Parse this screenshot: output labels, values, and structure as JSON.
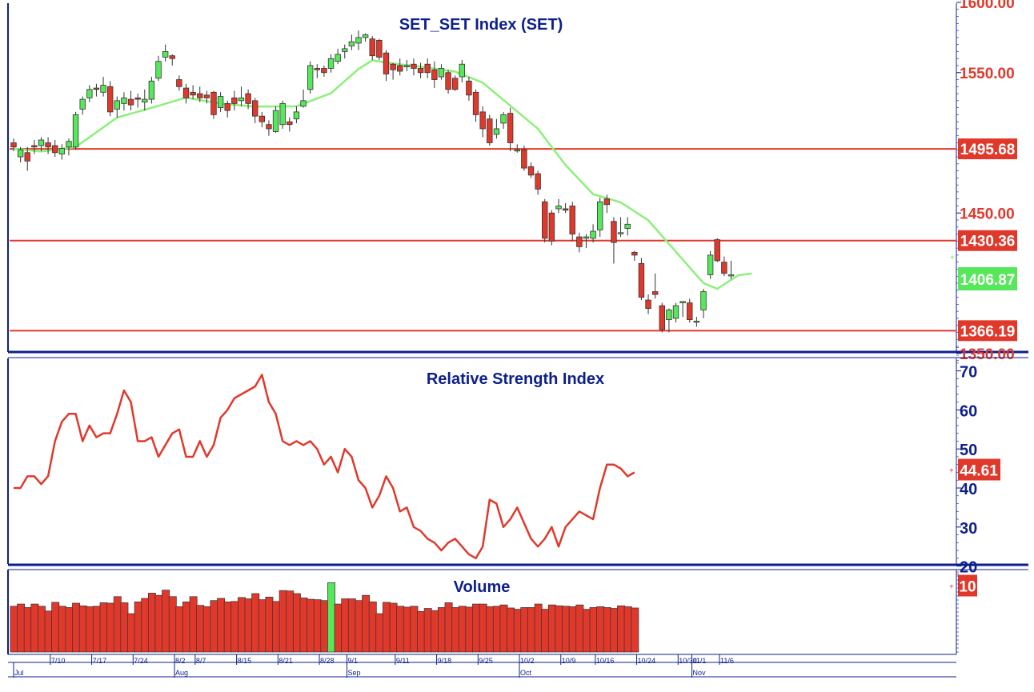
{
  "colors": {
    "up": "#56e85a",
    "down": "#e0392b",
    "ma": "#8cf07a",
    "rsi_line": "#e0392b",
    "axis": "#0d1f8c",
    "hline": "#e0392b"
  },
  "chart_data": [
    {
      "type": "candlestick",
      "title": "SET_SET Index (SET)",
      "ylim": [
        1335,
        1625
      ],
      "y_ticks": [
        "1600.00",
        "1550.00",
        "1450.00",
        "1350.00"
      ],
      "horizontal_lines": [
        1495.68,
        1430.36,
        1366.19
      ],
      "level_labels": [
        "1495.68",
        "1430.36",
        "1366.19"
      ],
      "last_price_label": "1406.87",
      "grid": false,
      "candles": [
        [
          1500,
          1497,
          1503,
          1494
        ],
        [
          1490,
          1495,
          1497,
          1486
        ],
        [
          1493,
          1487,
          1497,
          1480
        ],
        [
          1498,
          1497,
          1502,
          1492
        ],
        [
          1498,
          1502,
          1504,
          1494
        ],
        [
          1500,
          1497,
          1504,
          1492
        ],
        [
          1498,
          1493,
          1502,
          1490
        ],
        [
          1492,
          1496,
          1499,
          1488
        ],
        [
          1497,
          1501,
          1503,
          1491
        ],
        [
          1497,
          1520,
          1522,
          1495
        ],
        [
          1524,
          1531,
          1533,
          1520
        ],
        [
          1532,
          1538,
          1541,
          1529
        ],
        [
          1539,
          1538,
          1542,
          1533
        ],
        [
          1536,
          1541,
          1547,
          1533
        ],
        [
          1540,
          1522,
          1544,
          1519
        ],
        [
          1524,
          1530,
          1533,
          1518
        ],
        [
          1528,
          1532,
          1536,
          1523
        ],
        [
          1531,
          1527,
          1537,
          1523
        ],
        [
          1532,
          1531,
          1535,
          1525
        ],
        [
          1529,
          1531,
          1538,
          1523
        ],
        [
          1531,
          1544,
          1547,
          1528
        ],
        [
          1546,
          1558,
          1562,
          1544
        ],
        [
          1561,
          1565,
          1570,
          1558
        ],
        [
          1562,
          1560,
          1563,
          1555
        ],
        [
          1545,
          1540,
          1548,
          1537
        ],
        [
          1539,
          1532,
          1542,
          1528
        ],
        [
          1536,
          1534,
          1541,
          1531
        ],
        [
          1535,
          1532,
          1540,
          1529
        ],
        [
          1534,
          1532,
          1537,
          1528
        ],
        [
          1536,
          1520,
          1537,
          1517
        ],
        [
          1525,
          1533,
          1536,
          1522
        ],
        [
          1528,
          1523,
          1530,
          1518
        ],
        [
          1532,
          1528,
          1537,
          1523
        ],
        [
          1530,
          1532,
          1540,
          1526
        ],
        [
          1535,
          1528,
          1538,
          1524
        ],
        [
          1530,
          1519,
          1532,
          1514
        ],
        [
          1519,
          1515,
          1522,
          1511
        ],
        [
          1513,
          1510,
          1516,
          1505
        ],
        [
          1508,
          1523,
          1526,
          1507
        ],
        [
          1513,
          1528,
          1530,
          1510
        ],
        [
          1515,
          1513,
          1518,
          1508
        ],
        [
          1517,
          1522,
          1526,
          1514
        ],
        [
          1526,
          1530,
          1538,
          1525
        ],
        [
          1538,
          1555,
          1558,
          1535
        ],
        [
          1553,
          1552,
          1556,
          1546
        ],
        [
          1553,
          1550,
          1555,
          1547
        ],
        [
          1553,
          1560,
          1563,
          1550
        ],
        [
          1558,
          1563,
          1567,
          1556
        ],
        [
          1565,
          1567,
          1570,
          1560
        ],
        [
          1569,
          1572,
          1577,
          1566
        ],
        [
          1571,
          1575,
          1580,
          1566
        ],
        [
          1575,
          1577,
          1578,
          1572
        ],
        [
          1574,
          1562,
          1576,
          1559
        ],
        [
          1573,
          1561,
          1574,
          1559
        ],
        [
          1564,
          1549,
          1566,
          1544
        ],
        [
          1556,
          1552,
          1557,
          1545
        ],
        [
          1555,
          1551,
          1560,
          1548
        ],
        [
          1555,
          1555,
          1559,
          1551
        ],
        [
          1556,
          1553,
          1560,
          1548
        ],
        [
          1553,
          1550,
          1557,
          1546
        ],
        [
          1556,
          1550,
          1560,
          1546
        ],
        [
          1552,
          1545,
          1558,
          1539
        ],
        [
          1547,
          1553,
          1556,
          1545
        ],
        [
          1550,
          1538,
          1552,
          1535
        ],
        [
          1546,
          1538,
          1548,
          1537
        ],
        [
          1547,
          1556,
          1559,
          1543
        ],
        [
          1544,
          1534,
          1547,
          1530
        ],
        [
          1536,
          1520,
          1538,
          1515
        ],
        [
          1522,
          1510,
          1526,
          1504
        ],
        [
          1517,
          1500,
          1520,
          1498
        ],
        [
          1506,
          1510,
          1517,
          1503
        ],
        [
          1514,
          1520,
          1522,
          1510
        ],
        [
          1521,
          1500,
          1525,
          1494
        ],
        [
          1495,
          1495,
          1499,
          1493
        ],
        [
          1495,
          1482,
          1498,
          1480
        ],
        [
          1483,
          1477,
          1486,
          1475
        ],
        [
          1478,
          1467,
          1480,
          1463
        ],
        [
          1458,
          1432,
          1460,
          1429
        ],
        [
          1450,
          1430,
          1452,
          1427
        ],
        [
          1453,
          1455,
          1460,
          1450
        ],
        [
          1453,
          1452,
          1457,
          1450
        ],
        [
          1455,
          1435,
          1458,
          1430
        ],
        [
          1433,
          1426,
          1436,
          1422
        ],
        [
          1432,
          1433,
          1435,
          1425
        ],
        [
          1432,
          1437,
          1442,
          1429
        ],
        [
          1438,
          1458,
          1461,
          1433
        ],
        [
          1460,
          1456,
          1463,
          1450
        ],
        [
          1444,
          1429,
          1447,
          1414
        ],
        [
          1436,
          1436,
          1447,
          1433
        ],
        [
          1439,
          1442,
          1447,
          1434
        ],
        [
          1422,
          1420,
          1423,
          1416
        ],
        [
          1414,
          1390,
          1418,
          1388
        ],
        [
          1388,
          1382,
          1392,
          1378
        ],
        [
          1394,
          1392,
          1407,
          1389
        ],
        [
          1384,
          1367,
          1386,
          1365
        ],
        [
          1374,
          1381,
          1382,
          1365
        ],
        [
          1375,
          1384,
          1386,
          1372
        ],
        [
          1386,
          1387,
          1387,
          1376
        ],
        [
          1386,
          1374,
          1389,
          1372
        ],
        [
          1373,
          1373,
          1376,
          1369
        ],
        [
          1381,
          1394,
          1396,
          1375
        ],
        [
          1406,
          1420,
          1423,
          1403
        ],
        [
          1431,
          1416,
          1432,
          1415
        ],
        [
          1415,
          1407,
          1419,
          1405
        ],
        [
          1406,
          1406,
          1416,
          1403
        ]
      ],
      "moving_average": [
        [
          0,
          1495.8
        ],
        [
          4,
          1493.8
        ],
        [
          9,
          1497.0
        ],
        [
          15,
          1518.0
        ],
        [
          20,
          1524.9
        ],
        [
          25,
          1532.2
        ],
        [
          30,
          1527.9
        ],
        [
          35,
          1525.8
        ],
        [
          41,
          1526.0
        ],
        [
          46,
          1535.3
        ],
        [
          50,
          1552.6
        ],
        [
          52,
          1558.7
        ],
        [
          55,
          1556.4
        ],
        [
          60,
          1553.6
        ],
        [
          64,
          1550.7
        ],
        [
          68,
          1542.8
        ],
        [
          72,
          1526.4
        ],
        [
          76,
          1510.0
        ],
        [
          80,
          1484.2
        ],
        [
          84,
          1463.4
        ],
        [
          88,
          1457.6
        ],
        [
          92,
          1444.8
        ],
        [
          96,
          1422.4
        ],
        [
          100,
          1400.0
        ],
        [
          102,
          1396.0
        ],
        [
          105,
          1405.6
        ],
        [
          107,
          1406.9
        ]
      ]
    },
    {
      "type": "line",
      "title": "Relative Strength Index",
      "ylim": [
        15,
        77
      ],
      "y_ticks": [
        "70",
        "60",
        "50",
        "40",
        "30",
        "20"
      ],
      "last_value_label": "44.61",
      "grid": false,
      "values": [
        40,
        40,
        43,
        43,
        41,
        43,
        52,
        57,
        59,
        59,
        52,
        56,
        53,
        54,
        54,
        59,
        65,
        62,
        52,
        52,
        53,
        48,
        51,
        54,
        55,
        48,
        48,
        52,
        48,
        51,
        58,
        60,
        63,
        64,
        65,
        66,
        69,
        62,
        59,
        52,
        51,
        52,
        51,
        52,
        50,
        46,
        48,
        44,
        50,
        48,
        42,
        40,
        35,
        38,
        43,
        40,
        34,
        35,
        30,
        29,
        27,
        26,
        24,
        26,
        27,
        25,
        23,
        22,
        25,
        37,
        36,
        30,
        32,
        35,
        31,
        27,
        25,
        27,
        30,
        25,
        30,
        32,
        34,
        33,
        32,
        40,
        46,
        46,
        45,
        43,
        44
      ],
      "x_start_index": 0
    },
    {
      "type": "bar",
      "title": "Volume",
      "y_ticks": [
        "10"
      ],
      "ylim": [
        0,
        18
      ],
      "grid": false,
      "values": [
        10.5,
        11,
        10.2,
        11,
        10.5,
        9.4,
        11.4,
        10.5,
        10.2,
        11.2,
        10.6,
        10.4,
        10.5,
        11.3,
        11.2,
        12.7,
        11.3,
        8.8,
        11.5,
        12.3,
        13.5,
        13.0,
        14.2,
        12.7,
        10.4,
        11.5,
        12.7,
        10.7,
        10.4,
        11.8,
        12.3,
        11.5,
        11.6,
        12.5,
        12.2,
        13.4,
        12.0,
        12.6,
        11.6,
        14.1,
        14.0,
        13.4,
        12.4,
        12.1,
        12.0,
        11.8,
        15.9,
        11.0,
        12.2,
        12.2,
        11.8,
        13.0,
        11.5,
        8.8,
        11.4,
        11.2,
        10.5,
        10.3,
        10.5,
        9.3,
        10.0,
        9.5,
        10.2,
        11.3,
        10.2,
        10.5,
        10.3,
        11.0,
        11.0,
        10.4,
        10.5,
        10.8,
        10.1,
        9.8,
        10.2,
        10.2,
        11.0,
        9.8,
        10.8,
        10.6,
        10.5,
        10.4,
        10.8,
        9.8,
        10.2,
        10.4,
        10.2,
        10.0,
        10.6,
        10.4,
        10.1
      ],
      "up_bar_indices": [
        46
      ]
    }
  ],
  "x_axis": {
    "labels": [
      "7/10",
      "7/17",
      "7/24",
      "8/2",
      "8/7",
      "8/15",
      "8/21",
      "8/28",
      "9/1",
      "9/11",
      "9/18",
      "9/25",
      "10/2",
      "10/9",
      "10/16",
      "10/24",
      "10/30",
      "11/1",
      "11/6"
    ],
    "label_positions": [
      3,
      9,
      15,
      21,
      24,
      30,
      36,
      42,
      46,
      53,
      59,
      65,
      71,
      77,
      82,
      88,
      94,
      96,
      100
    ],
    "months": [
      "Jul",
      "Aug",
      "Sep",
      "Oct",
      "Nov"
    ],
    "month_positions": [
      0,
      21,
      46,
      71,
      96
    ]
  }
}
